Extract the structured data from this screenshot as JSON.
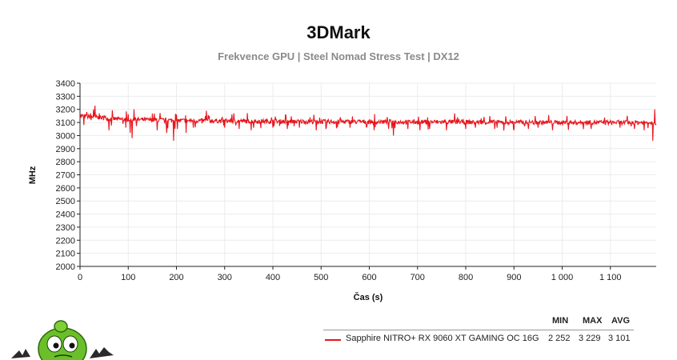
{
  "chart_data": {
    "type": "line",
    "title": "3DMark",
    "subtitle": "Frekvence GPU | Steel Nomad Stress Test | DX12",
    "xlabel": "Čas (s)",
    "ylabel": "MHz",
    "xlim": [
      0,
      1195
    ],
    "ylim": [
      2000,
      3400
    ],
    "yticks": [
      2000,
      2100,
      2200,
      2300,
      2400,
      2500,
      2600,
      2700,
      2800,
      2900,
      3000,
      3100,
      3200,
      3300,
      3400
    ],
    "xticks": [
      0,
      100,
      200,
      300,
      400,
      500,
      600,
      700,
      800,
      900,
      1000,
      1100
    ],
    "xtick_labels": [
      "0",
      "100",
      "200",
      "300",
      "400",
      "500",
      "600",
      "700",
      "800",
      "900",
      "1 000",
      "1 100"
    ],
    "grid": true,
    "legend_position": "bottom-right",
    "series": [
      {
        "name": "Sapphire NITRO+ RX 9060 XT GAMING OC 16G",
        "color": "#e8141c",
        "sample_interval_s": 1,
        "base_points": [
          [
            0,
            3150
          ],
          [
            30,
            3140
          ],
          [
            80,
            3125
          ],
          [
            200,
            3115
          ],
          [
            400,
            3108
          ],
          [
            600,
            3105
          ],
          [
            800,
            3103
          ],
          [
            1000,
            3100
          ],
          [
            1195,
            3100
          ]
        ],
        "spikes": [
          [
            8,
            3080
          ],
          [
            14,
            3180
          ],
          [
            22,
            3170
          ],
          [
            28,
            3200
          ],
          [
            31,
            3229
          ],
          [
            40,
            3170
          ],
          [
            60,
            3040
          ],
          [
            95,
            3060
          ],
          [
            104,
            3020
          ],
          [
            108,
            2980
          ],
          [
            112,
            3200
          ],
          [
            160,
            3040
          ],
          [
            180,
            3020
          ],
          [
            194,
            2960
          ],
          [
            202,
            3050
          ],
          [
            220,
            3020
          ],
          [
            235,
            3060
          ],
          [
            262,
            3190
          ],
          [
            268,
            3150
          ],
          [
            300,
            3060
          ],
          [
            330,
            3050
          ],
          [
            355,
            3040
          ],
          [
            400,
            3060
          ],
          [
            430,
            3050
          ],
          [
            455,
            3060
          ],
          [
            490,
            3040
          ],
          [
            510,
            3050
          ],
          [
            540,
            3140
          ],
          [
            560,
            3060
          ],
          [
            610,
            3040
          ],
          [
            640,
            3050
          ],
          [
            650,
            3000
          ],
          [
            680,
            3050
          ],
          [
            705,
            3040
          ],
          [
            725,
            3050
          ],
          [
            760,
            3040
          ],
          [
            777,
            3170
          ],
          [
            783,
            3140
          ],
          [
            800,
            3050
          ],
          [
            820,
            3060
          ],
          [
            860,
            3050
          ],
          [
            900,
            3040
          ],
          [
            930,
            3050
          ],
          [
            950,
            3060
          ],
          [
            980,
            3040
          ],
          [
            1010,
            3150
          ],
          [
            1018,
            3110
          ],
          [
            1060,
            3050
          ],
          [
            1120,
            3060
          ],
          [
            1150,
            3050
          ],
          [
            1170,
            3040
          ],
          [
            1188,
            2960
          ],
          [
            1192,
            3200
          ],
          [
            1195,
            3080
          ]
        ],
        "stats": {
          "min": 2252,
          "max": 3229,
          "avg": 3101
        }
      }
    ]
  },
  "legend": {
    "headers": {
      "min": "MIN",
      "max": "MAX",
      "avg": "AVG"
    },
    "values": {
      "min": "2 252",
      "max": "3 229",
      "avg": "3 101"
    }
  }
}
